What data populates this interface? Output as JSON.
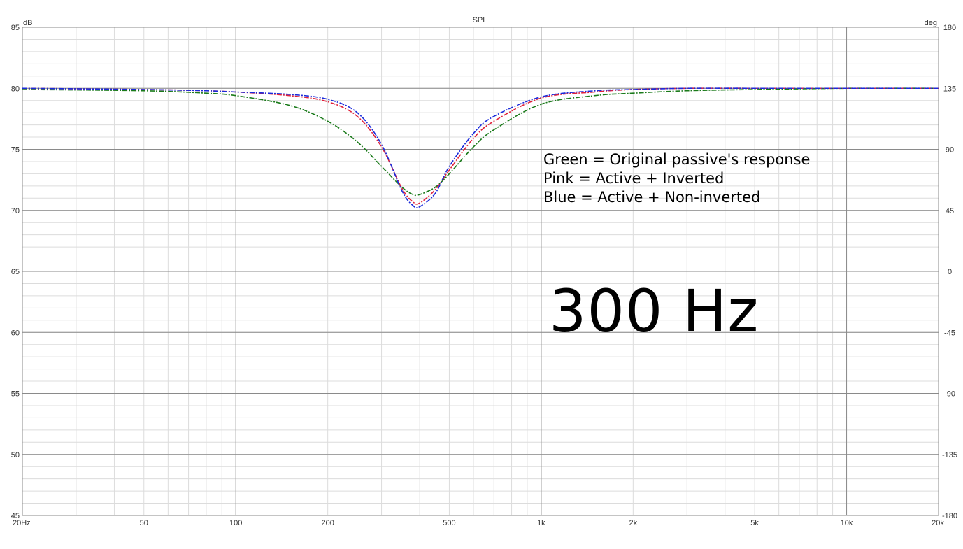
{
  "chart_data": {
    "type": "line",
    "title": "SPL",
    "y_unit": "dB",
    "y2_unit": "deg",
    "x_scale": "log",
    "xlim": [
      20,
      20000
    ],
    "ylim": [
      45,
      85
    ],
    "y2lim": [
      -180,
      180
    ],
    "grid": true,
    "x_ticks": [
      "20Hz",
      "50",
      "100",
      "200",
      "500",
      "1k",
      "2k",
      "5k",
      "10k",
      "20k"
    ],
    "x_tick_values": [
      20,
      50,
      100,
      200,
      500,
      1000,
      2000,
      5000,
      10000,
      20000
    ],
    "y_ticks": [
      45,
      50,
      55,
      60,
      65,
      70,
      75,
      80,
      85
    ],
    "y2_ticks": [
      -180,
      -135,
      -90,
      -45,
      0,
      45,
      90,
      135,
      180
    ],
    "series": [
      {
        "color": "#1a7a1a",
        "x": [
          20,
          50,
          80,
          100,
          150,
          200,
          250,
          300,
          350,
          380,
          400,
          450,
          500,
          600,
          700,
          1000,
          1500,
          2000,
          3000,
          5000,
          10000,
          20000
        ],
        "values": [
          79.9,
          79.8,
          79.6,
          79.4,
          78.6,
          77.3,
          75.6,
          73.6,
          71.9,
          71.3,
          71.3,
          71.9,
          73.0,
          75.2,
          76.6,
          78.7,
          79.4,
          79.6,
          79.8,
          79.9,
          80.0,
          80.0
        ]
      },
      {
        "color": "#e0203a",
        "x": [
          20,
          50,
          80,
          100,
          150,
          200,
          250,
          300,
          350,
          380,
          400,
          450,
          500,
          600,
          700,
          1000,
          1500,
          2000,
          3000,
          5000,
          10000,
          20000
        ],
        "values": [
          80.0,
          79.9,
          79.8,
          79.7,
          79.4,
          78.9,
          77.7,
          75.2,
          71.8,
          70.7,
          70.6,
          71.7,
          73.3,
          75.9,
          77.3,
          79.2,
          79.7,
          79.9,
          80.0,
          80.0,
          80.0,
          80.0
        ]
      },
      {
        "color": "#1a2adb",
        "x": [
          20,
          50,
          80,
          100,
          150,
          200,
          250,
          300,
          350,
          380,
          400,
          450,
          500,
          600,
          700,
          1000,
          1500,
          2000,
          3000,
          5000,
          10000,
          20000
        ],
        "values": [
          80.0,
          79.9,
          79.8,
          79.7,
          79.5,
          79.1,
          78.0,
          75.4,
          71.6,
          70.4,
          70.3,
          71.4,
          73.6,
          76.3,
          77.7,
          79.3,
          79.8,
          79.9,
          80.0,
          80.0,
          80.0,
          80.0
        ]
      }
    ],
    "annotations": {
      "legend_lines": [
        "Green = Original passive's response",
        "Pink = Active + Inverted",
        "Blue = Active + Non-inverted"
      ],
      "big_label": "300 Hz"
    }
  }
}
